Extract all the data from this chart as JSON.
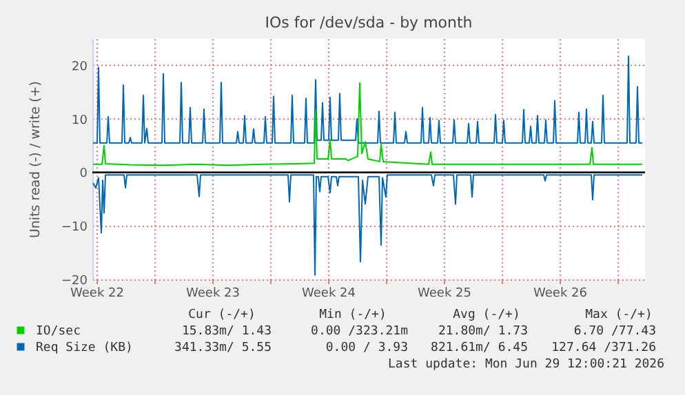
{
  "chart_data": {
    "type": "line",
    "title": "IOs for /dev/sda - by month",
    "ylabel": "Units read (-) / write (+)",
    "xlim": [
      "2026-05-28T06:00",
      "2026-06-30T16:00"
    ],
    "ylim": [
      -20,
      25
    ],
    "xticks": [
      {
        "value": "2026-05-28T12:00",
        "label": "Week 22"
      },
      {
        "value": "2026-06-01T00:00",
        "label": null
      },
      {
        "value": "2026-06-04T12:00",
        "label": "Week 23"
      },
      {
        "value": "2026-06-08T00:00",
        "label": null
      },
      {
        "value": "2026-06-11T12:00",
        "label": "Week 24"
      },
      {
        "value": "2026-06-15T00:00",
        "label": null
      },
      {
        "value": "2026-06-18T12:00",
        "label": "Week 25"
      },
      {
        "value": "2026-06-22T00:00",
        "label": null
      },
      {
        "value": "2026-06-25T12:00",
        "label": "Week 26"
      },
      {
        "value": "2026-06-29T00:00",
        "label": null
      }
    ],
    "yticks": [
      -20,
      -10,
      0,
      10,
      20
    ],
    "grid": true,
    "legend": "bottom",
    "line_style": "solid",
    "marker": "none",
    "ref_lines": [
      {
        "axis": "y",
        "value": 0,
        "label": null,
        "color": "#000000"
      }
    ],
    "series": [
      {
        "name": "IO/sec",
        "color": "#00cc00",
        "x": [
          "2026-05-28T07:00",
          "2026-05-28T20:00",
          "2026-05-28T23:00",
          "2026-05-29T01:00",
          "2026-05-30T12:00",
          "2026-06-01T12:00",
          "2026-06-03T12:00",
          "2026-06-05T12:00",
          "2026-06-07T12:00",
          "2026-06-09T12:00",
          "2026-06-10T16:00",
          "2026-06-10T18:00",
          "2026-06-10T20:00",
          "2026-06-11T12:00",
          "2026-06-11T15:00",
          "2026-06-11T17:00",
          "2026-06-12T14:00",
          "2026-06-12T17:00",
          "2026-06-13T07:00",
          "2026-06-13T10:00",
          "2026-06-13T13:00",
          "2026-06-13T18:00",
          "2026-06-13T22:00",
          "2026-06-14T15:00",
          "2026-06-14T17:00",
          "2026-06-14T20:00",
          "2026-06-17T14:00",
          "2026-06-17T17:00",
          "2026-06-17T19:00",
          "2026-06-21T12:00",
          "2026-06-24T12:00",
          "2026-06-27T08:00",
          "2026-06-27T11:00",
          "2026-06-27T13:00",
          "2026-06-30T12:00"
        ],
        "values": [
          1.5,
          1.5,
          5.0,
          1.6,
          1.4,
          1.3,
          1.5,
          1.3,
          1.5,
          1.6,
          1.7,
          11.7,
          2.5,
          2.5,
          6.1,
          2.5,
          2.5,
          2.2,
          3.0,
          16.7,
          3.5,
          5.7,
          2.5,
          2.0,
          5.2,
          2.0,
          1.5,
          3.8,
          1.5,
          1.5,
          1.5,
          1.5,
          4.6,
          1.5,
          1.5
        ]
      },
      {
        "name": "Req Size (KB)",
        "color": "#0066b3",
        "x": [
          "2026-05-28T07:00",
          "2026-05-28T13:00",
          "2026-05-28T15:00",
          "2026-05-28T17:00",
          "2026-05-29T03:00",
          "2026-05-29T05:00",
          "2026-05-29T07:00",
          "2026-05-30T01:00",
          "2026-05-30T03:00",
          "2026-05-30T05:00",
          "2026-05-30T11:00",
          "2026-05-30T13:00",
          "2026-05-30T15:00",
          "2026-05-31T06:00",
          "2026-05-31T08:00",
          "2026-05-31T10:00",
          "2026-05-31T13:00",
          "2026-05-31T15:00",
          "2026-06-01T11:00",
          "2026-06-01T13:00",
          "2026-06-01T15:00",
          "2026-06-02T13:00",
          "2026-06-02T15:00",
          "2026-06-02T17:00",
          "2026-06-03T02:00",
          "2026-06-03T04:00",
          "2026-06-03T06:00",
          "2026-06-03T22:00",
          "2026-06-04T00:00",
          "2026-06-04T02:00",
          "2026-06-04T23:00",
          "2026-06-05T01:00",
          "2026-06-05T03:00",
          "2026-06-05T23:00",
          "2026-06-06T01:00",
          "2026-06-06T03:00",
          "2026-06-06T09:00",
          "2026-06-06T11:00",
          "2026-06-06T13:00",
          "2026-06-06T22:00",
          "2026-06-07T00:00",
          "2026-06-07T02:00",
          "2026-06-07T15:00",
          "2026-06-07T17:00",
          "2026-06-07T19:00",
          "2026-06-08T03:00",
          "2026-06-08T05:00",
          "2026-06-08T07:00",
          "2026-06-09T06:00",
          "2026-06-09T08:00",
          "2026-06-09T10:00",
          "2026-06-10T02:00",
          "2026-06-10T04:00",
          "2026-06-10T06:00",
          "2026-06-10T16:00",
          "2026-06-10T18:00",
          "2026-06-10T20:00",
          "2026-06-11T02:00",
          "2026-06-11T04:00",
          "2026-06-11T06:00",
          "2026-06-11T13:00",
          "2026-06-11T15:00",
          "2026-06-11T17:00",
          "2026-06-12T03:00",
          "2026-06-12T05:00",
          "2026-06-12T07:00",
          "2026-06-13T04:00",
          "2026-06-13T06:00",
          "2026-06-13T08:00",
          "2026-06-14T12:00",
          "2026-06-14T14:00",
          "2026-06-14T16:00",
          "2026-06-15T11:00",
          "2026-06-15T13:00",
          "2026-06-15T15:00",
          "2026-06-16T03:00",
          "2026-06-16T05:00",
          "2026-06-16T07:00",
          "2026-06-17T03:00",
          "2026-06-17T05:00",
          "2026-06-17T07:00",
          "2026-06-17T14:00",
          "2026-06-17T16:00",
          "2026-06-17T18:00",
          "2026-06-18T03:00",
          "2026-06-18T05:00",
          "2026-06-18T07:00",
          "2026-06-19T01:00",
          "2026-06-19T03:00",
          "2026-06-19T05:00",
          "2026-06-19T22:00",
          "2026-06-20T00:00",
          "2026-06-20T02:00",
          "2026-06-20T11:00",
          "2026-06-20T13:00",
          "2026-06-20T15:00",
          "2026-06-21T13:00",
          "2026-06-21T15:00",
          "2026-06-21T17:00",
          "2026-06-22T01:00",
          "2026-06-22T03:00",
          "2026-06-22T05:00",
          "2026-06-23T06:00",
          "2026-06-23T08:00",
          "2026-06-23T10:00",
          "2026-06-23T16:00",
          "2026-06-23T18:00",
          "2026-06-23T20:00",
          "2026-06-24T02:00",
          "2026-06-24T04:00",
          "2026-06-24T06:00",
          "2026-06-24T14:00",
          "2026-06-24T16:00",
          "2026-06-24T18:00",
          "2026-06-25T03:00",
          "2026-06-25T05:00",
          "2026-06-25T07:00",
          "2026-06-26T14:00",
          "2026-06-26T16:00",
          "2026-06-26T18:00",
          "2026-06-27T01:00",
          "2026-06-27T03:00",
          "2026-06-27T05:00",
          "2026-06-27T10:00",
          "2026-06-27T12:00",
          "2026-06-27T14:00",
          "2026-06-28T01:00",
          "2026-06-28T03:00",
          "2026-06-28T05:00",
          "2026-06-29T14:00",
          "2026-06-29T16:00",
          "2026-06-29T18:00",
          "2026-06-30T03:00",
          "2026-06-30T05:00",
          "2026-06-30T07:00",
          "2026-06-30T12:00"
        ],
        "values": [
          5.5,
          5.5,
          19.6,
          5.5,
          5.5,
          10.4,
          5.5,
          5.5,
          16.3,
          5.5,
          5.5,
          6.5,
          5.5,
          5.5,
          14.4,
          5.5,
          8.2,
          5.5,
          5.5,
          18.4,
          5.5,
          5.5,
          16.8,
          5.5,
          5.5,
          12.1,
          5.5,
          5.5,
          11.8,
          5.5,
          5.5,
          16.8,
          5.5,
          5.5,
          7.6,
          5.5,
          5.5,
          10.6,
          5.5,
          5.5,
          8.1,
          5.5,
          5.5,
          10.4,
          5.5,
          5.5,
          14.2,
          5.5,
          5.5,
          14.4,
          5.5,
          5.5,
          13.8,
          5.5,
          5.5,
          17.3,
          6.0,
          6.0,
          13.0,
          6.0,
          6.0,
          14.0,
          6.0,
          6.0,
          14.7,
          6.0,
          6.0,
          10.0,
          5.5,
          5.5,
          11.4,
          5.5,
          5.5,
          11.2,
          5.5,
          5.5,
          7.6,
          5.5,
          5.5,
          12.1,
          5.5,
          5.5,
          10.2,
          5.5,
          5.5,
          9.7,
          5.5,
          5.5,
          9.8,
          5.5,
          5.5,
          9.1,
          5.5,
          5.5,
          9.5,
          5.5,
          5.5,
          10.8,
          5.5,
          5.5,
          9.7,
          5.5,
          5.5,
          11.7,
          5.5,
          5.5,
          8.6,
          5.5,
          5.5,
          10.6,
          5.5,
          5.5,
          9.8,
          5.5,
          5.5,
          13.4,
          5.5,
          5.5,
          11.2,
          5.5,
          5.5,
          11.8,
          5.5,
          5.5,
          9.5,
          5.5,
          5.5,
          14.4,
          5.5,
          5.5,
          21.7,
          5.5,
          5.5,
          16.0,
          5.5,
          5.5
        ]
      },
      {
        "color": "#0066b3",
        "x": [
          "2026-05-28T07:00",
          "2026-05-28T11:00",
          "2026-05-28T15:00",
          "2026-05-28T19:00",
          "2026-05-28T21:00",
          "2026-05-28T23:00",
          "2026-05-29T01:00",
          "2026-05-30T04:00",
          "2026-05-30T06:00",
          "2026-05-30T08:00",
          "2026-06-03T14:00",
          "2026-06-03T17:00",
          "2026-06-03T19:00",
          "2026-06-09T02:00",
          "2026-06-09T04:00",
          "2026-06-09T06:00",
          "2026-06-10T15:00",
          "2026-06-10T17:00",
          "2026-06-10T19:00",
          "2026-06-10T22:00",
          "2026-06-11T00:00",
          "2026-06-11T02:00",
          "2026-06-11T12:00",
          "2026-06-11T15:00",
          "2026-06-11T17:00",
          "2026-06-12T00:00",
          "2026-06-12T02:00",
          "2026-06-12T04:00",
          "2026-06-13T08:00",
          "2026-06-13T11:00",
          "2026-06-13T14:00",
          "2026-06-13T18:00",
          "2026-06-13T22:00",
          "2026-06-14T14:00",
          "2026-06-14T17:00",
          "2026-06-14T19:00",
          "2026-06-15T00:00",
          "2026-06-15T02:00",
          "2026-06-17T18:00",
          "2026-06-17T21:00",
          "2026-06-17T23:00",
          "2026-06-19T02:00",
          "2026-06-19T05:00",
          "2026-06-19T07:00",
          "2026-06-20T03:00",
          "2026-06-20T05:00",
          "2026-06-20T07:00",
          "2026-06-24T13:00",
          "2026-06-24T15:00",
          "2026-06-24T17:00",
          "2026-06-27T10:00",
          "2026-06-27T12:00",
          "2026-06-27T14:00",
          "2026-06-30T12:00"
        ],
        "values": [
          -2.0,
          -2.9,
          -1.0,
          -11.3,
          -1.5,
          -7.6,
          -0.5,
          -0.5,
          -2.9,
          -0.5,
          -0.5,
          -4.5,
          -0.5,
          -0.5,
          -5.5,
          -0.5,
          -0.5,
          -19.2,
          -0.8,
          -0.8,
          -3.6,
          -0.8,
          -0.8,
          -3.8,
          -0.8,
          -0.8,
          -2.5,
          -0.8,
          -0.8,
          -16.7,
          -1.5,
          -5.9,
          -0.8,
          -0.8,
          -13.6,
          -1.0,
          -4.6,
          -0.5,
          -0.5,
          -2.5,
          -0.5,
          -0.5,
          -5.9,
          -0.5,
          -0.5,
          -4.6,
          -0.5,
          -0.5,
          -1.6,
          -0.5,
          -0.5,
          -5.1,
          -0.5,
          -0.5
        ]
      }
    ],
    "annotations": [
      "Cur (-/+)",
      "Min (-/+)",
      "Avg (-/+)",
      "Max (-/+)",
      "15.83m/ 1.43",
      "0.00 /323.21m",
      "21.80m/ 1.73",
      "6.70 /77.43",
      "341.33m/ 5.55",
      "0.00 / 3.93",
      "821.61m/ 6.45",
      "127.64 /371.26",
      "Last update: Mon Jun 29 12:00:21 2026"
    ]
  }
}
